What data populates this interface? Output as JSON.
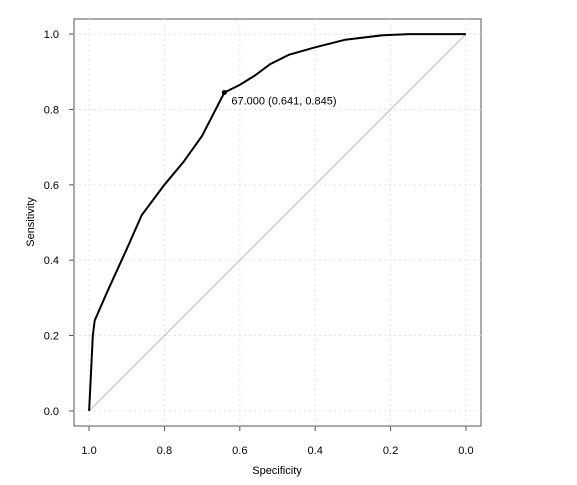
{
  "chart_data": {
    "type": "line",
    "title": "",
    "xlabel": "Specificity",
    "ylabel": "Sensitivity",
    "x_reversed": true,
    "xlim": [
      1.04,
      -0.04
    ],
    "ylim": [
      -0.04,
      1.04
    ],
    "x_ticks": [
      1.0,
      0.8,
      0.6,
      0.4,
      0.2,
      0.0
    ],
    "x_tick_labels": [
      "1.0",
      "0.8",
      "0.6",
      "0.4",
      "0.2",
      "0.0"
    ],
    "y_ticks": [
      0.0,
      0.2,
      0.4,
      0.6,
      0.8,
      1.0
    ],
    "y_tick_labels": [
      "0.0",
      "0.2",
      "0.4",
      "0.6",
      "0.8",
      "1.0"
    ],
    "grid": true,
    "series": [
      {
        "role": "roc-curve",
        "color": "#000000",
        "points": [
          [
            1.0,
            0.0
          ],
          [
            0.995,
            0.1
          ],
          [
            0.99,
            0.2
          ],
          [
            0.985,
            0.24
          ],
          [
            0.95,
            0.32
          ],
          [
            0.9,
            0.43
          ],
          [
            0.86,
            0.52
          ],
          [
            0.8,
            0.6
          ],
          [
            0.75,
            0.66
          ],
          [
            0.7,
            0.73
          ],
          [
            0.641,
            0.845
          ],
          [
            0.6,
            0.865
          ],
          [
            0.56,
            0.89
          ],
          [
            0.52,
            0.92
          ],
          [
            0.47,
            0.945
          ],
          [
            0.4,
            0.965
          ],
          [
            0.32,
            0.985
          ],
          [
            0.22,
            0.997
          ],
          [
            0.15,
            1.0
          ],
          [
            0.0,
            1.0
          ]
        ]
      },
      {
        "role": "diagonal-reference",
        "color": "#bbbbbb",
        "points": [
          [
            1.0,
            0.0
          ],
          [
            0.0,
            1.0
          ]
        ]
      }
    ],
    "annotations": [
      {
        "x": 0.641,
        "y": 0.845,
        "text": "67.000 (0.641, 0.845)"
      }
    ]
  }
}
